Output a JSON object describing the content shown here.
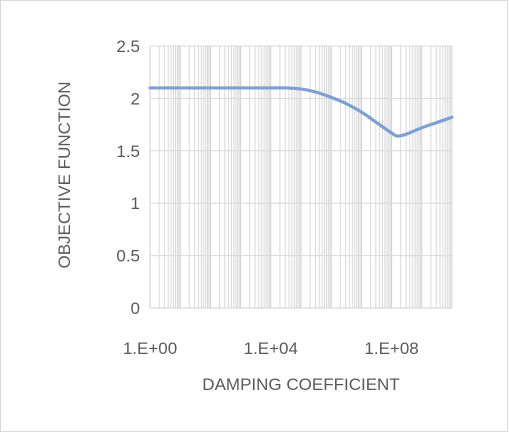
{
  "chart_data": {
    "type": "line",
    "title": "",
    "xlabel": "DAMPING COEFFICIENT",
    "ylabel": "OBJECTIVE FUNCTION",
    "x_scale": "log10",
    "xlim": [
      1,
      10000000000
    ],
    "ylim": [
      0,
      2.5
    ],
    "x_tick_labels": [
      "1.E+00",
      "1.E+04",
      "1.E+08"
    ],
    "x_tick_values": [
      1,
      10000,
      100000000
    ],
    "y_tick_labels": [
      "0",
      "0.5",
      "1",
      "1.5",
      "2",
      "2.5"
    ],
    "y_tick_values": [
      0,
      0.5,
      1,
      1.5,
      2,
      2.5
    ],
    "grid": true,
    "legend": "none",
    "series": [
      {
        "color": "#7f9fd3",
        "x": [
          1,
          10,
          100,
          1000,
          10000,
          31623,
          100000,
          316228,
          1000000,
          3162278,
          10000000,
          31622777,
          100000000,
          158489319,
          316227766,
          1000000000,
          3162277660,
          10000000000
        ],
        "y": [
          2.1,
          2.1,
          2.1,
          2.1,
          2.1,
          2.1,
          2.09,
          2.06,
          2.01,
          1.95,
          1.87,
          1.77,
          1.67,
          1.64,
          1.66,
          1.72,
          1.77,
          1.82
        ]
      }
    ]
  }
}
